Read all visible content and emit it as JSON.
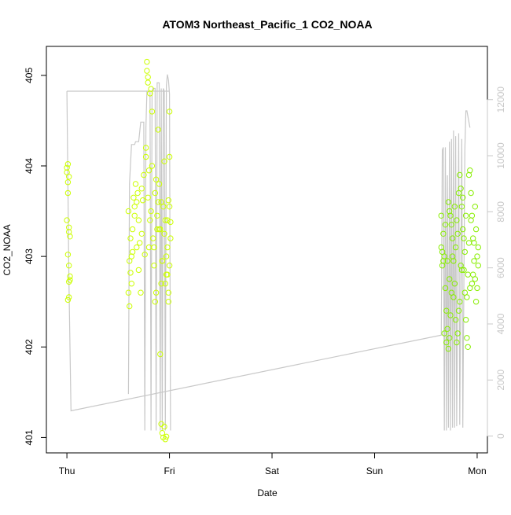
{
  "chart_data": {
    "type": "scatter",
    "title": "ATOM3 Northeast_Pacific_1 CO2_NOAA",
    "xlabel": "Date",
    "ylabel": "CO2_NOAA",
    "x_ticks": [
      "Thu",
      "Fri",
      "Sat",
      "Sun",
      "Mon"
    ],
    "x_tick_day_offsets": [
      0,
      1,
      2,
      3,
      4
    ],
    "x_range_days": [
      -0.2,
      4.1
    ],
    "y_ticks": [
      "401",
      "402",
      "403",
      "404",
      "405"
    ],
    "y_range": [
      400.83,
      405.32
    ],
    "y2_ticks": [
      "0",
      "2000",
      "4000",
      "6000",
      "8000",
      "10000",
      "12000"
    ],
    "y2_range": [
      -600,
      13900
    ],
    "grid": false,
    "colors": {
      "points_early": "#ccff00",
      "points_late": "#88ee00",
      "altitude_line": "#c8c8c8",
      "axis": "#000000",
      "secondary_axis": "#c8c8c8"
    },
    "series": [
      {
        "kind": "scatter",
        "color_key": "points_early",
        "points": [
          [
            0.0,
            403.98
          ],
          [
            0.01,
            404.02
          ],
          [
            0.0,
            403.93
          ],
          [
            0.02,
            403.88
          ],
          [
            0.01,
            403.82
          ],
          [
            0.0,
            403.4
          ],
          [
            0.02,
            403.32
          ],
          [
            0.02,
            403.27
          ],
          [
            0.03,
            403.22
          ],
          [
            0.01,
            403.02
          ],
          [
            0.02,
            402.9
          ],
          [
            0.03,
            402.78
          ],
          [
            0.02,
            402.72
          ],
          [
            0.02,
            402.55
          ],
          [
            0.01,
            402.52
          ],
          [
            0.01,
            403.7
          ],
          [
            0.03,
            402.74
          ],
          [
            0.6,
            403.5
          ],
          [
            0.61,
            402.45
          ],
          [
            0.6,
            402.6
          ],
          [
            0.62,
            402.82
          ],
          [
            0.63,
            403.0
          ],
          [
            0.62,
            403.2
          ],
          [
            0.64,
            403.3
          ],
          [
            0.61,
            402.95
          ],
          [
            0.66,
            403.55
          ],
          [
            0.67,
            403.8
          ],
          [
            0.68,
            403.6
          ],
          [
            0.69,
            403.7
          ],
          [
            0.7,
            403.4
          ],
          [
            0.68,
            403.1
          ],
          [
            0.7,
            402.85
          ],
          [
            0.72,
            402.6
          ],
          [
            0.73,
            403.25
          ],
          [
            0.73,
            403.75
          ],
          [
            0.75,
            403.9
          ],
          [
            0.77,
            404.2
          ],
          [
            0.78,
            405.15
          ],
          [
            0.78,
            405.05
          ],
          [
            0.79,
            404.98
          ],
          [
            0.79,
            404.92
          ],
          [
            0.81,
            404.8
          ],
          [
            0.82,
            404.85
          ],
          [
            0.83,
            404.6
          ],
          [
            0.8,
            403.95
          ],
          [
            0.82,
            403.5
          ],
          [
            0.84,
            403.2
          ],
          [
            0.85,
            402.9
          ],
          [
            0.86,
            402.5
          ],
          [
            0.87,
            402.6
          ],
          [
            0.88,
            403.3
          ],
          [
            0.89,
            403.6
          ],
          [
            0.9,
            403.8
          ],
          [
            0.91,
            403.3
          ],
          [
            0.92,
            402.7
          ],
          [
            0.93,
            402.95
          ],
          [
            0.94,
            403.55
          ],
          [
            0.95,
            404.05
          ],
          [
            0.95,
            403.25
          ],
          [
            0.97,
            403.0
          ],
          [
            0.98,
            403.4
          ],
          [
            0.99,
            403.62
          ],
          [
            1.0,
            404.1
          ],
          [
            0.96,
            402.7
          ],
          [
            0.93,
            402.95
          ],
          [
            0.97,
            402.8
          ],
          [
            0.99,
            402.5
          ],
          [
            0.91,
            401.92
          ],
          [
            0.92,
            401.15
          ],
          [
            0.93,
            401.05
          ],
          [
            0.94,
            401.0
          ],
          [
            0.95,
            401.12
          ],
          [
            0.96,
            400.98
          ],
          [
            0.97,
            401.01
          ],
          [
            0.76,
            403.02
          ],
          [
            0.74,
            403.62
          ],
          [
            0.71,
            403.15
          ],
          [
            0.8,
            403.1
          ],
          [
            0.83,
            404.0
          ],
          [
            0.86,
            403.7
          ],
          [
            0.88,
            403.45
          ],
          [
            0.9,
            403.3
          ],
          [
            0.92,
            403.6
          ],
          [
            1.0,
            403.55
          ],
          [
            1.01,
            403.38
          ],
          [
            1.0,
            402.9
          ],
          [
            0.98,
            402.8
          ],
          [
            1.0,
            404.6
          ],
          [
            0.65,
            403.65
          ],
          [
            0.66,
            403.45
          ],
          [
            0.64,
            403.05
          ],
          [
            0.63,
            402.7
          ],
          [
            0.85,
            403.1
          ],
          [
            0.87,
            403.85
          ],
          [
            0.89,
            404.4
          ],
          [
            0.96,
            403.4
          ],
          [
            0.98,
            403.1
          ],
          [
            0.99,
            402.6
          ],
          [
            1.01,
            403.2
          ],
          [
            0.81,
            403.4
          ],
          [
            0.79,
            403.65
          ],
          [
            0.77,
            404.1
          ]
        ]
      },
      {
        "kind": "scatter",
        "color_key": "points_late",
        "points": [
          [
            3.65,
            403.45
          ],
          [
            3.66,
            403.05
          ],
          [
            3.67,
            402.95
          ],
          [
            3.68,
            403.0
          ],
          [
            3.66,
            402.9
          ],
          [
            3.69,
            402.65
          ],
          [
            3.7,
            402.4
          ],
          [
            3.71,
            402.2
          ],
          [
            3.7,
            402.05
          ],
          [
            3.72,
            401.98
          ],
          [
            3.73,
            402.1
          ],
          [
            3.73,
            403.5
          ],
          [
            3.74,
            403.45
          ],
          [
            3.75,
            403.35
          ],
          [
            3.76,
            403.2
          ],
          [
            3.77,
            402.95
          ],
          [
            3.78,
            402.7
          ],
          [
            3.79,
            402.3
          ],
          [
            3.8,
            402.05
          ],
          [
            3.81,
            402.15
          ],
          [
            3.82,
            403.7
          ],
          [
            3.83,
            403.9
          ],
          [
            3.84,
            403.75
          ],
          [
            3.85,
            403.55
          ],
          [
            3.86,
            403.3
          ],
          [
            3.87,
            402.85
          ],
          [
            3.88,
            402.6
          ],
          [
            3.89,
            402.3
          ],
          [
            3.9,
            402.1
          ],
          [
            3.91,
            402.0
          ],
          [
            3.92,
            403.9
          ],
          [
            3.93,
            403.95
          ],
          [
            3.94,
            403.7
          ],
          [
            3.95,
            403.45
          ],
          [
            3.96,
            403.2
          ],
          [
            3.97,
            402.95
          ],
          [
            3.98,
            402.75
          ],
          [
            3.99,
            402.5
          ],
          [
            4.0,
            402.65
          ],
          [
            4.01,
            403.1
          ],
          [
            3.67,
            403.25
          ],
          [
            3.71,
            402.95
          ],
          [
            3.75,
            402.6
          ],
          [
            3.79,
            403.1
          ],
          [
            3.83,
            402.5
          ],
          [
            3.87,
            403.2
          ],
          [
            3.91,
            402.8
          ],
          [
            3.95,
            402.7
          ],
          [
            3.99,
            403.3
          ],
          [
            3.72,
            403.6
          ],
          [
            3.76,
            403.0
          ],
          [
            3.8,
            403.4
          ],
          [
            3.84,
            402.9
          ],
          [
            3.88,
            403.05
          ],
          [
            3.92,
            403.15
          ],
          [
            3.96,
            402.8
          ],
          [
            4.0,
            403.0
          ],
          [
            3.68,
            402.15
          ],
          [
            3.74,
            402.35
          ],
          [
            3.78,
            403.55
          ],
          [
            3.82,
            402.4
          ],
          [
            3.86,
            403.65
          ],
          [
            3.9,
            402.55
          ],
          [
            3.94,
            403.4
          ],
          [
            3.98,
            403.55
          ],
          [
            3.65,
            403.1
          ],
          [
            3.69,
            403.35
          ],
          [
            3.73,
            402.75
          ],
          [
            3.77,
            402.55
          ],
          [
            3.81,
            403.25
          ],
          [
            3.85,
            402.85
          ],
          [
            3.89,
            403.45
          ],
          [
            3.93,
            402.65
          ],
          [
            3.97,
            403.15
          ],
          [
            4.01,
            402.9
          ]
        ]
      },
      {
        "kind": "line",
        "axis": "secondary",
        "color_key": "altitude_line",
        "points": [
          [
            0.0,
            12300
          ],
          [
            0.02,
            5500
          ],
          [
            0.04,
            900
          ],
          [
            3.65,
            3600
          ],
          [
            3.66,
            10200
          ],
          [
            3.67,
            10300
          ],
          [
            3.68,
            200
          ],
          [
            3.69,
            10300
          ],
          [
            3.7,
            200
          ],
          [
            3.71,
            9300
          ],
          [
            3.72,
            300
          ],
          [
            3.73,
            10500
          ],
          [
            3.74,
            200
          ],
          [
            3.75,
            10600
          ],
          [
            3.76,
            300
          ],
          [
            3.77,
            10900
          ],
          [
            3.78,
            300
          ],
          [
            3.79,
            10700
          ],
          [
            3.8,
            350
          ],
          [
            3.82,
            10800
          ],
          [
            3.83,
            400
          ],
          [
            3.85,
            10600
          ],
          [
            3.86,
            300
          ],
          [
            3.88,
            10200
          ],
          [
            3.89,
            11600
          ],
          [
            3.9,
            11600
          ],
          [
            3.93,
            11000
          ]
        ]
      },
      {
        "kind": "line",
        "axis": "secondary",
        "color_key": "altitude_line",
        "points": [
          [
            0.6,
            1500
          ],
          [
            0.61,
            9000
          ],
          [
            0.63,
            10400
          ],
          [
            0.66,
            10400
          ],
          [
            0.67,
            10500
          ],
          [
            0.7,
            10500
          ],
          [
            0.72,
            11200
          ],
          [
            0.75,
            11200
          ],
          [
            0.76,
            200
          ],
          [
            0.77,
            11000
          ],
          [
            0.78,
            12300
          ],
          [
            0.81,
            12300
          ],
          [
            0.82,
            200
          ],
          [
            0.83,
            12300
          ],
          [
            0.84,
            12400
          ],
          [
            0.86,
            12400
          ],
          [
            0.87,
            200
          ],
          [
            0.88,
            12600
          ],
          [
            0.9,
            12600
          ],
          [
            0.91,
            200
          ],
          [
            0.92,
            12400
          ],
          [
            0.93,
            200
          ],
          [
            0.94,
            12400
          ],
          [
            0.95,
            12300
          ],
          [
            0.96,
            200
          ],
          [
            0.97,
            12500
          ],
          [
            0.98,
            12900
          ],
          [
            0.99,
            12700
          ],
          [
            1.0,
            12200
          ],
          [
            1.01,
            200
          ]
        ]
      },
      {
        "kind": "line",
        "axis": "secondary",
        "color_key": "altitude_line",
        "points": [
          [
            0.0,
            12300
          ],
          [
            1.0,
            12300
          ]
        ]
      }
    ]
  }
}
